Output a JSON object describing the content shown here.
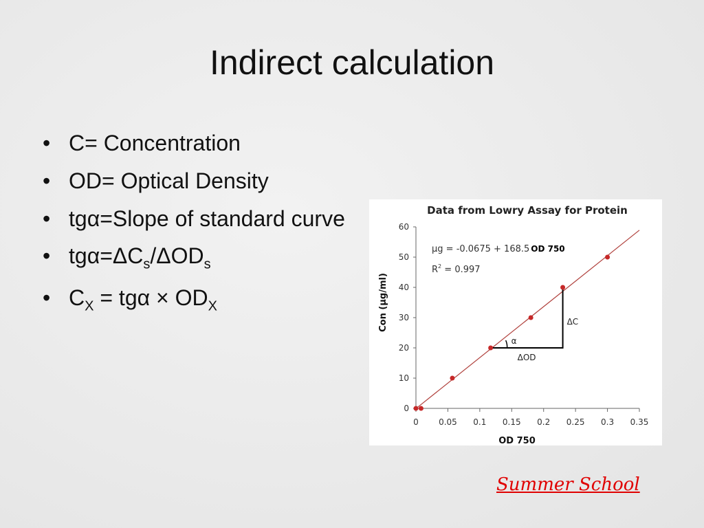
{
  "slide": {
    "title": "Indirect calculation",
    "bullets": [
      [
        {
          "text": "C= Concentration"
        }
      ],
      [
        {
          "text": "OD= Optical Density"
        }
      ],
      [
        {
          "text": "tgα=Slope of standard curve"
        }
      ],
      [
        {
          "text": "tgα=ΔC"
        },
        {
          "text": "s",
          "sub": true
        },
        {
          "text": "/ΔOD"
        },
        {
          "text": "s",
          "sub": true
        }
      ],
      [
        {
          "text": "C"
        },
        {
          "text": "X",
          "sub": true
        },
        {
          "text": " = tgα × OD"
        },
        {
          "text": "X",
          "sub": true
        }
      ]
    ],
    "footer": "Summer School"
  },
  "chart_data": {
    "type": "scatter",
    "title": "Data from Lowry Assay for Protein",
    "x_label": "OD 750",
    "y_label": "Con (µg/ml)",
    "x": [
      0,
      0.008,
      0.057,
      0.117,
      0.18,
      0.23,
      0.3
    ],
    "series": [
      {
        "color": "#c62828",
        "values": [
          0,
          0,
          10,
          20,
          30,
          40,
          50
        ]
      }
    ],
    "fit": {
      "intercept": -0.0675,
      "slope": 168.5,
      "color": "#b0403c"
    },
    "equation": {
      "lhs": "µg = ",
      "plus": " + ",
      "rhs": "OD 750"
    },
    "r2": {
      "symbol": "R",
      "exponent": "2",
      "eq": " = ",
      "value": 0.997
    },
    "annotations": {
      "delta_c": "ΔC",
      "delta_od": "ΔOD",
      "alpha": "α"
    },
    "xlim": [
      0,
      0.35
    ],
    "xticks": [
      0,
      0.05,
      0.1,
      0.15,
      0.2,
      0.25,
      0.3,
      0.35
    ],
    "ylim": [
      0,
      60
    ],
    "yticks": [
      0,
      10,
      20,
      30,
      40,
      50,
      60
    ]
  }
}
